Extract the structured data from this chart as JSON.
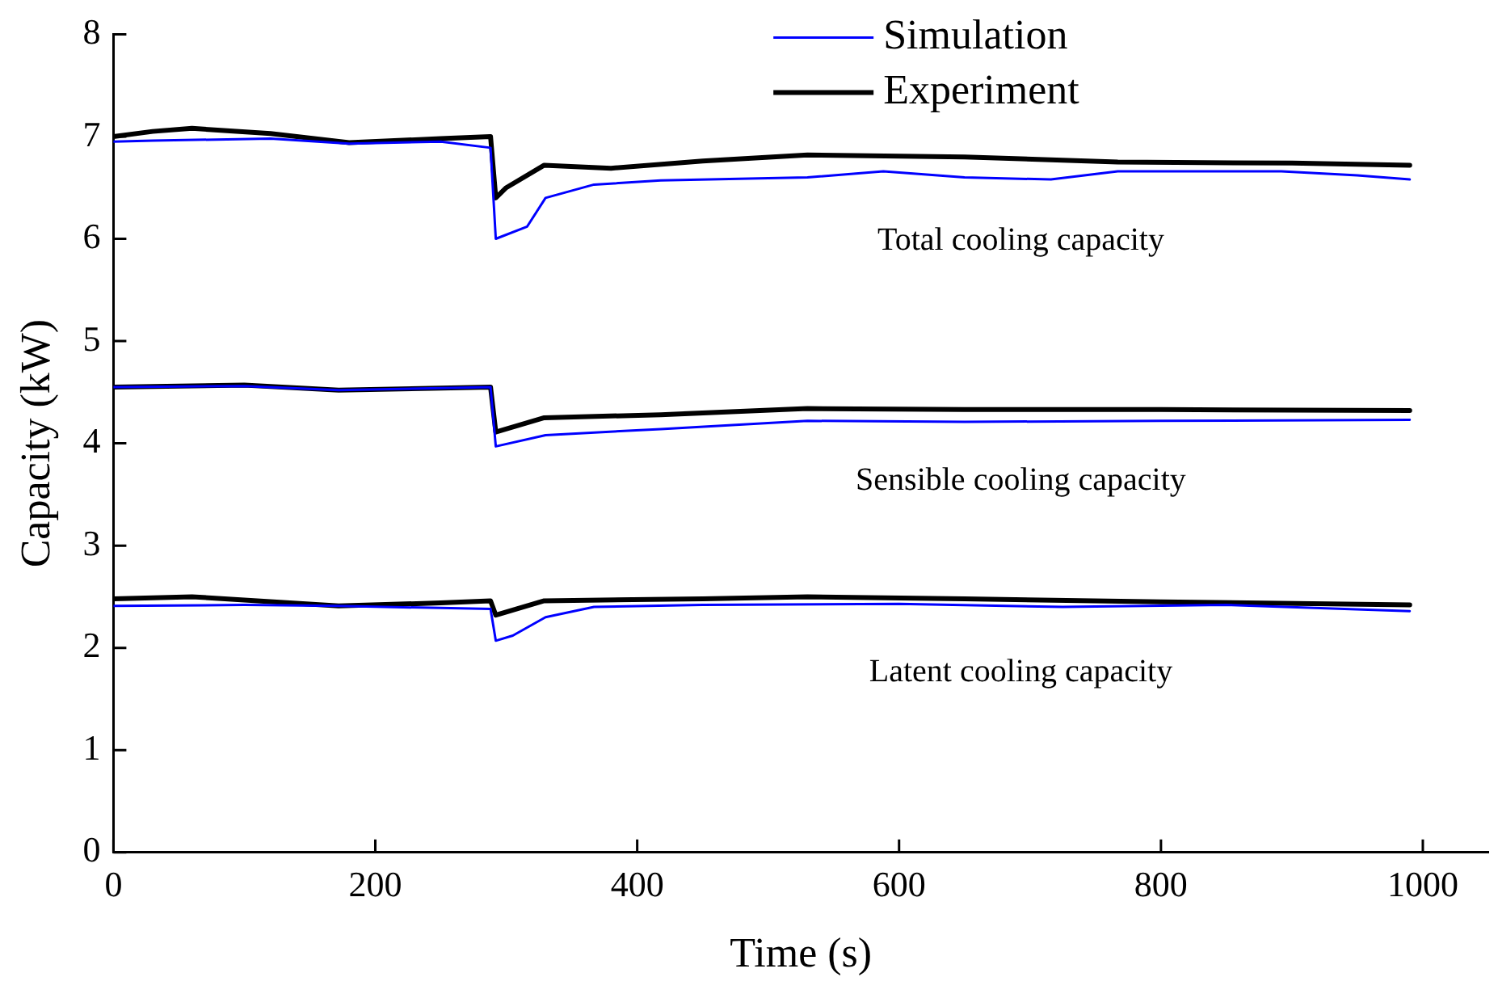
{
  "chart_data": {
    "type": "line",
    "xlabel": "Time (s)",
    "ylabel": "Capacity (kW)",
    "xlim": [
      0,
      1050
    ],
    "xticks": [
      0,
      200,
      400,
      600,
      800,
      1000
    ],
    "ylim": [
      0,
      8
    ],
    "yticks": [
      0,
      1,
      2,
      3,
      4,
      5,
      6,
      7,
      8
    ],
    "grid": false,
    "legend": "top",
    "marker": "none",
    "line_style": "solid",
    "series": [
      {
        "name": "Simulation",
        "color": "#0000ff",
        "x": [
          0,
          30,
          120,
          180,
          250,
          288,
          292,
          316,
          330,
          367,
          418,
          530,
          588,
          650,
          716,
          767,
          892,
          950,
          990
        ],
        "values": [
          6.95,
          6.96,
          6.98,
          6.93,
          6.95,
          6.89,
          6.0,
          6.12,
          6.4,
          6.53,
          6.57,
          6.6,
          6.66,
          6.6,
          6.58,
          6.66,
          6.66,
          6.62,
          6.58
        ]
      },
      {
        "name": "Experiment",
        "color": "#000000",
        "x": [
          0,
          30,
          60,
          120,
          180,
          250,
          288,
          292,
          300,
          329,
          380,
          450,
          530,
          650,
          767,
          900,
          990
        ],
        "values": [
          7.0,
          7.05,
          7.08,
          7.03,
          6.94,
          6.98,
          7.0,
          6.4,
          6.5,
          6.72,
          6.69,
          6.76,
          6.82,
          6.8,
          6.75,
          6.74,
          6.72
        ]
      },
      {
        "color": "#0000ff",
        "x": [
          0,
          100,
          172,
          250,
          288,
          292,
          330,
          418,
          530,
          650,
          800,
          990
        ],
        "values": [
          4.55,
          4.56,
          4.52,
          4.54,
          4.55,
          3.97,
          4.08,
          4.14,
          4.22,
          4.21,
          4.22,
          4.23
        ]
      },
      {
        "color": "#000000",
        "x": [
          0,
          100,
          172,
          250,
          288,
          292,
          329,
          418,
          530,
          650,
          800,
          990
        ],
        "values": [
          4.55,
          4.57,
          4.52,
          4.54,
          4.55,
          4.11,
          4.25,
          4.28,
          4.34,
          4.33,
          4.33,
          4.32
        ]
      },
      {
        "color": "#0000ff",
        "x": [
          0,
          100,
          172,
          250,
          288,
          292,
          305,
          330,
          367,
          450,
          600,
          725,
          850,
          990
        ],
        "values": [
          2.41,
          2.42,
          2.41,
          2.39,
          2.38,
          2.07,
          2.12,
          2.3,
          2.4,
          2.42,
          2.43,
          2.4,
          2.42,
          2.36
        ]
      },
      {
        "color": "#000000",
        "x": [
          0,
          60,
          172,
          250,
          288,
          292,
          329,
          450,
          530,
          650,
          800,
          990
        ],
        "values": [
          2.48,
          2.5,
          2.41,
          2.44,
          2.46,
          2.32,
          2.46,
          2.48,
          2.5,
          2.48,
          2.45,
          2.42
        ]
      }
    ],
    "annotations": [
      "Total cooling capacity",
      "Sensible cooling capacity",
      "Latent cooling capacity"
    ]
  }
}
